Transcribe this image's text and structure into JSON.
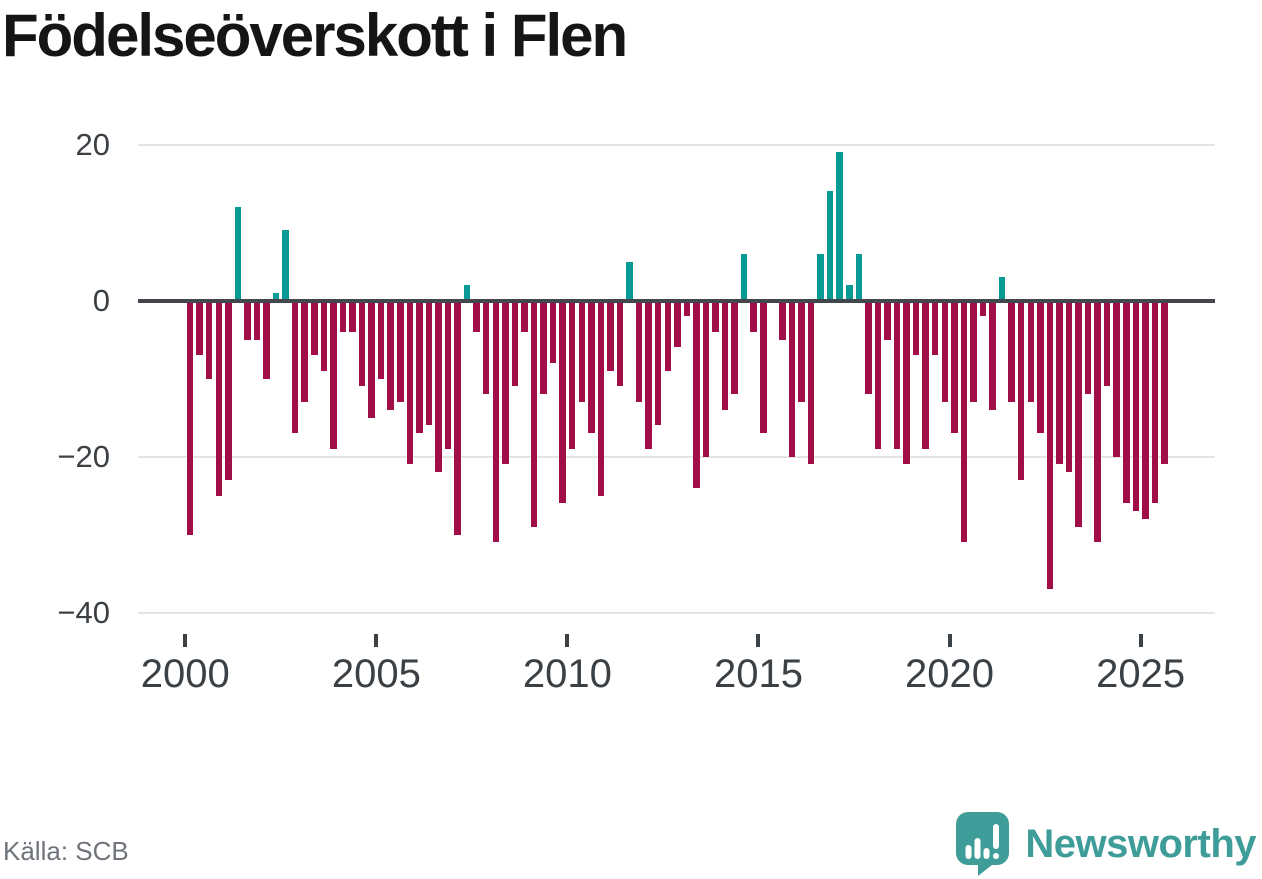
{
  "title": "Födelseöverskott i Flen",
  "source": "Källa: SCB",
  "branding": {
    "name": "Newsworthy",
    "icon": "newsworthy-speech-bubble-bar-chart-icon",
    "color": "#3e9d99"
  },
  "colors": {
    "positive_bar": "#089a95",
    "negative_bar": "#a00d47",
    "zero_line": "#43474b",
    "gridline": "#e4e4e4",
    "axis_text": "#3b4045",
    "muted_text": "#6f747b"
  },
  "chart_data": {
    "type": "bar",
    "title": "Födelseöverskott i Flen",
    "xlabel": "",
    "ylabel": "",
    "x_unit": "quarter",
    "start_year": 2000,
    "start_quarter": 1,
    "end_label": "2025 Q3",
    "y_ticks": [
      20,
      0,
      -20,
      -40
    ],
    "x_ticks": [
      2000,
      2005,
      2010,
      2015,
      2020,
      2025
    ],
    "ylim": [
      -44,
      24
    ],
    "grid": true,
    "legend": false,
    "series": [
      {
        "name": "Födelseöverskott",
        "values": [
          -30,
          -7,
          -10,
          -25,
          -23,
          12,
          -5,
          -5,
          -10,
          1,
          9,
          -17,
          -13,
          -7,
          -9,
          -19,
          -4,
          -4,
          -11,
          -15,
          -10,
          -14,
          -13,
          -21,
          -17,
          -16,
          -22,
          -19,
          -30,
          2,
          -4,
          -12,
          -31,
          -21,
          -11,
          -4,
          -29,
          -12,
          -8,
          -26,
          -19,
          -13,
          -17,
          -25,
          -9,
          -11,
          5,
          -13,
          -19,
          -16,
          -9,
          -6,
          -2,
          -24,
          -20,
          -4,
          -14,
          -12,
          6,
          -4,
          -17,
          0,
          -5,
          -20,
          -13,
          -21,
          6,
          14,
          19,
          2,
          6,
          -12,
          -19,
          -5,
          -19,
          -21,
          -7,
          -19,
          -7,
          -13,
          -17,
          -31,
          -13,
          -2,
          -14,
          3,
          -13,
          -23,
          -13,
          -17,
          -37,
          -21,
          -22,
          -29,
          -12,
          -31,
          -11,
          -20,
          -26,
          -27,
          -28,
          -26,
          -21
        ]
      }
    ]
  }
}
